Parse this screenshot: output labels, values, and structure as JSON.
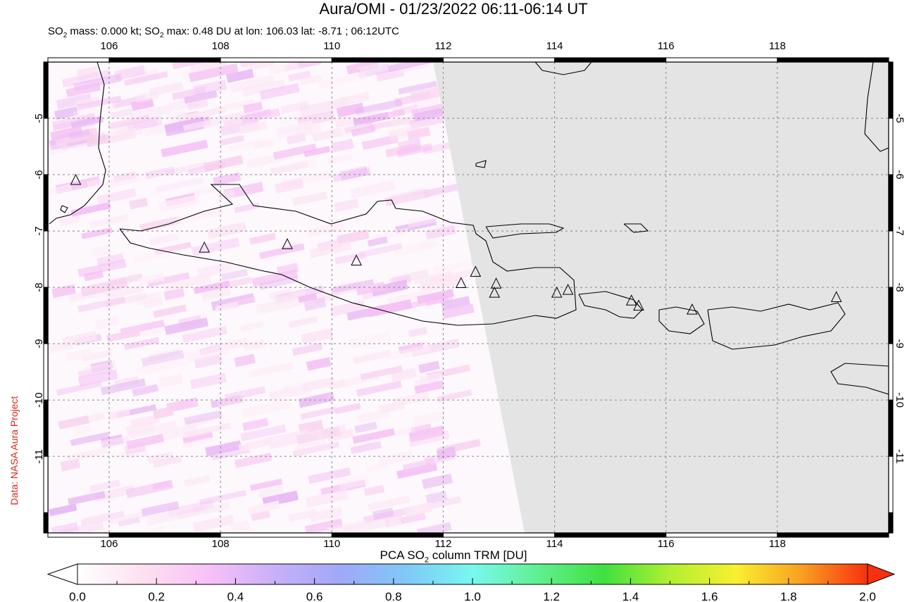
{
  "title": "Aura/OMI - 01/23/2022 06:11-06:14 UT",
  "subtitle": {
    "so2": "SO",
    "sub2": "2",
    "mass": " mass: 0.000 kt; ",
    "so2b": "SO",
    "sub2b": "2",
    "rest": " max: 0.48 DU at lon: 106.03 lat: -8.71 ; 06:12UTC"
  },
  "credit": "Data: NASA Aura Project",
  "chart_data": {
    "type": "heatmap",
    "title": "Aura/OMI - 01/23/2022 06:11-06:14 UT",
    "lon_range": [
      104.9,
      120.0
    ],
    "lat_range": [
      -12.36,
      -4.0
    ],
    "lon_ticks": [
      "106",
      "108",
      "110",
      "112",
      "114",
      "116",
      "118"
    ],
    "lat_ticks": [
      "-5",
      "-6",
      "-7",
      "-8",
      "-9",
      "-10",
      "-11"
    ],
    "grid": true,
    "volcanoes": [
      [
        105.4,
        -6.1
      ],
      [
        107.71,
        -7.3
      ],
      [
        109.2,
        -7.24
      ],
      [
        110.44,
        -7.53
      ],
      [
        112.32,
        -7.93
      ],
      [
        112.58,
        -7.73
      ],
      [
        112.95,
        -7.94
      ],
      [
        112.92,
        -8.1
      ],
      [
        114.04,
        -8.1
      ],
      [
        114.24,
        -8.05
      ],
      [
        115.38,
        -8.24
      ],
      [
        115.51,
        -8.33
      ],
      [
        116.47,
        -8.4
      ],
      [
        119.06,
        -8.18
      ]
    ],
    "so2_max": {
      "value": 0.48,
      "lon": 106.03,
      "lat": -8.71
    },
    "colorbar": {
      "label_pre": "PCA SO",
      "label_sub": "2",
      "label_post": " column TRM [DU]",
      "range": [
        0.0,
        2.0
      ],
      "ticks": [
        "0.0",
        "0.2",
        "0.4",
        "0.6",
        "0.8",
        "1.0",
        "1.2",
        "1.4",
        "1.6",
        "1.8",
        "2.0"
      ],
      "colors": [
        "#ffffff",
        "#fde0f0",
        "#f8c0f8",
        "#c8b0f8",
        "#a0a8f8",
        "#80c8f8",
        "#78f8f0",
        "#60f090",
        "#40e040",
        "#b0f030",
        "#f8f030",
        "#f8a020",
        "#f83010"
      ]
    },
    "no_data_color": "#e4e4e4"
  }
}
